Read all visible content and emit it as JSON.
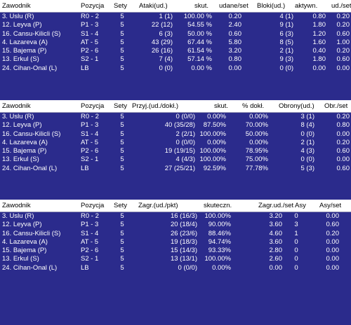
{
  "tables": [
    {
      "headers": [
        "Zawodnik",
        "Pozycja",
        "Sety",
        "Ataki(ud.)",
        "skut.",
        "udane/set",
        "Bloki(ud.)",
        "aktywn.",
        "ud./set"
      ],
      "rows": [
        [
          "3. Uslu (R)",
          "R0 - 2",
          "5",
          "1 (1)",
          "100.00 %",
          "0.20",
          "4 (1)",
          "0.80",
          "0.20"
        ],
        [
          "12. Leyva (P)",
          "P1 - 3",
          "5",
          "22 (12)",
          "54.55 %",
          "2.40",
          "9 (1)",
          "1.80",
          "0.20"
        ],
        [
          "16. Cansu-Kilicli (S)",
          "S1 - 4",
          "5",
          "6 (3)",
          "50.00 %",
          "0.60",
          "6 (3)",
          "1.20",
          "0.60"
        ],
        [
          "4. Lazareva (A)",
          "AT - 5",
          "5",
          "43 (29)",
          "67.44 %",
          "5.80",
          "8 (5)",
          "1.60",
          "1.00"
        ],
        [
          "15. Bajema (P)",
          "P2 - 6",
          "5",
          "26 (16)",
          "61.54 %",
          "3.20",
          "2 (1)",
          "0.40",
          "0.20"
        ],
        [
          "13. Erkul (S)",
          "S2 - 1",
          "5",
          "7 (4)",
          "57.14 %",
          "0.80",
          "9 (3)",
          "1.80",
          "0.60"
        ],
        [
          "24. Cihan-Onal (L)",
          "LB",
          "5",
          "0 (0)",
          "0.00 %",
          "0.00",
          "0 (0)",
          "0.00",
          "0.00"
        ]
      ]
    },
    {
      "headers": [
        "Zawodnik",
        "Pozycja",
        "Sety",
        "Przyj.(ud./dokł.)",
        "skut.",
        "% dokł.",
        "Obrony(ud.)",
        "Obr./set"
      ],
      "rows": [
        [
          "3. Uslu (R)",
          "R0 - 2",
          "5",
          "0 (0/0)",
          "0.00%",
          "0.00%",
          "3 (1)",
          "0.20"
        ],
        [
          "12. Leyva (P)",
          "P1 - 3",
          "5",
          "40 (35/28)",
          "87.50%",
          "70.00%",
          "8 (4)",
          "0.80"
        ],
        [
          "16. Cansu-Kilicli (S)",
          "S1 - 4",
          "5",
          "2 (2/1)",
          "100.00%",
          "50.00%",
          "0 (0)",
          "0.00"
        ],
        [
          "4. Lazareva (A)",
          "AT - 5",
          "5",
          "0 (0/0)",
          "0.00%",
          "0.00%",
          "2 (1)",
          "0.20"
        ],
        [
          "15. Bajema (P)",
          "P2 - 6",
          "5",
          "19 (19/15)",
          "100.00%",
          "78.95%",
          "4 (3)",
          "0.60"
        ],
        [
          "13. Erkul (S)",
          "S2 - 1",
          "5",
          "4 (4/3)",
          "100.00%",
          "75.00%",
          "0 (0)",
          "0.00"
        ],
        [
          "24. Cihan-Onal (L)",
          "LB",
          "5",
          "27 (25/21)",
          "92.59%",
          "77.78%",
          "5 (3)",
          "0.60"
        ]
      ]
    },
    {
      "headers": [
        "Zawodnik",
        "Pozycja",
        "Sety",
        "Zagr.(ud./pkt)",
        "skuteczn.",
        "Zagr.ud./set",
        "Asy",
        "Asy/set"
      ],
      "rows": [
        [
          "3. Uslu (R)",
          "R0 - 2",
          "5",
          "16 (16/3)",
          "100.00%",
          "3.20",
          "0",
          "0.00"
        ],
        [
          "12. Leyva (P)",
          "P1 - 3",
          "5",
          "20 (18/4)",
          "90.00%",
          "3.60",
          "3",
          "0.60"
        ],
        [
          "16. Cansu-Kilicli (S)",
          "S1 - 4",
          "5",
          "26 (23/6)",
          "88.46%",
          "4.60",
          "1",
          "0.20"
        ],
        [
          "4. Lazareva (A)",
          "AT - 5",
          "5",
          "19 (18/3)",
          "94.74%",
          "3.60",
          "0",
          "0.00"
        ],
        [
          "15. Bajema (P)",
          "P2 - 6",
          "5",
          "15 (14/3)",
          "93.33%",
          "2.80",
          "0",
          "0.00"
        ],
        [
          "13. Erkul (S)",
          "S2 - 1",
          "5",
          "13 (13/1)",
          "100.00%",
          "2.60",
          "0",
          "0.00"
        ],
        [
          "24. Cihan-Onal (L)",
          "LB",
          "5",
          "0 (0/0)",
          "0.00%",
          "0.00",
          "0",
          "0.00"
        ]
      ]
    }
  ]
}
